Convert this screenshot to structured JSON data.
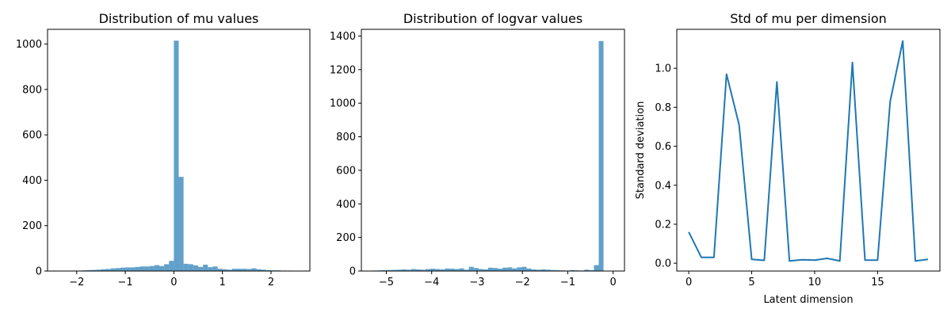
{
  "chart_data": [
    {
      "type": "bar",
      "title": "Distribution of mu values",
      "xlabel": "",
      "ylabel": "",
      "xlim": [
        -2.6,
        2.8
      ],
      "ylim": [
        0,
        1065
      ],
      "xticks": [
        -2,
        -1,
        0,
        1,
        2
      ],
      "xtick_labels": [
        "−2",
        "−1",
        "0",
        "1",
        "2"
      ],
      "yticks": [
        0,
        200,
        400,
        600,
        800,
        1000
      ],
      "ytick_labels": [
        "0",
        "200",
        "400",
        "600",
        "800",
        "1000"
      ],
      "grid": false,
      "bin_start": -2.5,
      "bin_width": 0.1,
      "values": [
        2,
        0,
        0,
        1,
        2,
        2,
        3,
        4,
        5,
        6,
        8,
        9,
        12,
        13,
        15,
        16,
        16,
        18,
        20,
        20,
        22,
        26,
        22,
        30,
        45,
        1015,
        415,
        32,
        30,
        25,
        18,
        28,
        17,
        20,
        10,
        8,
        6,
        10,
        10,
        10,
        9,
        12,
        8,
        6,
        4,
        3,
        3,
        2,
        2,
        1,
        1,
        0,
        1
      ]
    },
    {
      "type": "bar",
      "title": "Distribution of logvar values",
      "xlabel": "",
      "ylabel": "",
      "xlim": [
        -5.55,
        0.25
      ],
      "ylim": [
        0,
        1440
      ],
      "xticks": [
        -5,
        -4,
        -3,
        -2,
        -1,
        0
      ],
      "xtick_labels": [
        "−5",
        "−4",
        "−3",
        "−2",
        "−1",
        "0"
      ],
      "yticks": [
        0,
        200,
        400,
        600,
        800,
        1000,
        1200,
        1400
      ],
      "ytick_labels": [
        "0",
        "200",
        "400",
        "600",
        "800",
        "1000",
        "1200",
        "1400"
      ],
      "grid": false,
      "bin_start": -5.3,
      "bin_width": 0.106,
      "values": [
        3,
        4,
        5,
        6,
        7,
        8,
        10,
        8,
        12,
        10,
        8,
        12,
        14,
        12,
        10,
        15,
        14,
        12,
        16,
        8,
        25,
        18,
        12,
        10,
        20,
        18,
        14,
        20,
        22,
        16,
        22,
        25,
        15,
        10,
        8,
        10,
        8,
        6,
        5,
        4,
        3,
        6,
        4,
        3,
        8,
        5,
        35,
        1370
      ]
    },
    {
      "type": "line",
      "title": "Std of mu per dimension",
      "xlabel": "Latent dimension",
      "ylabel": "Standard deviation",
      "xlim": [
        -0.95,
        19.95
      ],
      "ylim": [
        -0.04,
        1.2
      ],
      "xticks": [
        0,
        5,
        10,
        15
      ],
      "xtick_labels": [
        "0",
        "5",
        "10",
        "15"
      ],
      "yticks": [
        0.0,
        0.2,
        0.4,
        0.6,
        0.8,
        1.0
      ],
      "ytick_labels": [
        "0.0",
        "0.2",
        "0.4",
        "0.6",
        "0.8",
        "1.0"
      ],
      "grid": false,
      "x": [
        0,
        1,
        2,
        3,
        4,
        5,
        6,
        7,
        8,
        9,
        10,
        11,
        12,
        13,
        14,
        15,
        16,
        17,
        18,
        19
      ],
      "y": [
        0.16,
        0.03,
        0.03,
        0.97,
        0.71,
        0.02,
        0.015,
        0.93,
        0.012,
        0.018,
        0.016,
        0.025,
        0.012,
        1.03,
        0.016,
        0.016,
        0.83,
        1.14,
        0.012,
        0.02
      ],
      "color": "#1f77b4"
    }
  ]
}
